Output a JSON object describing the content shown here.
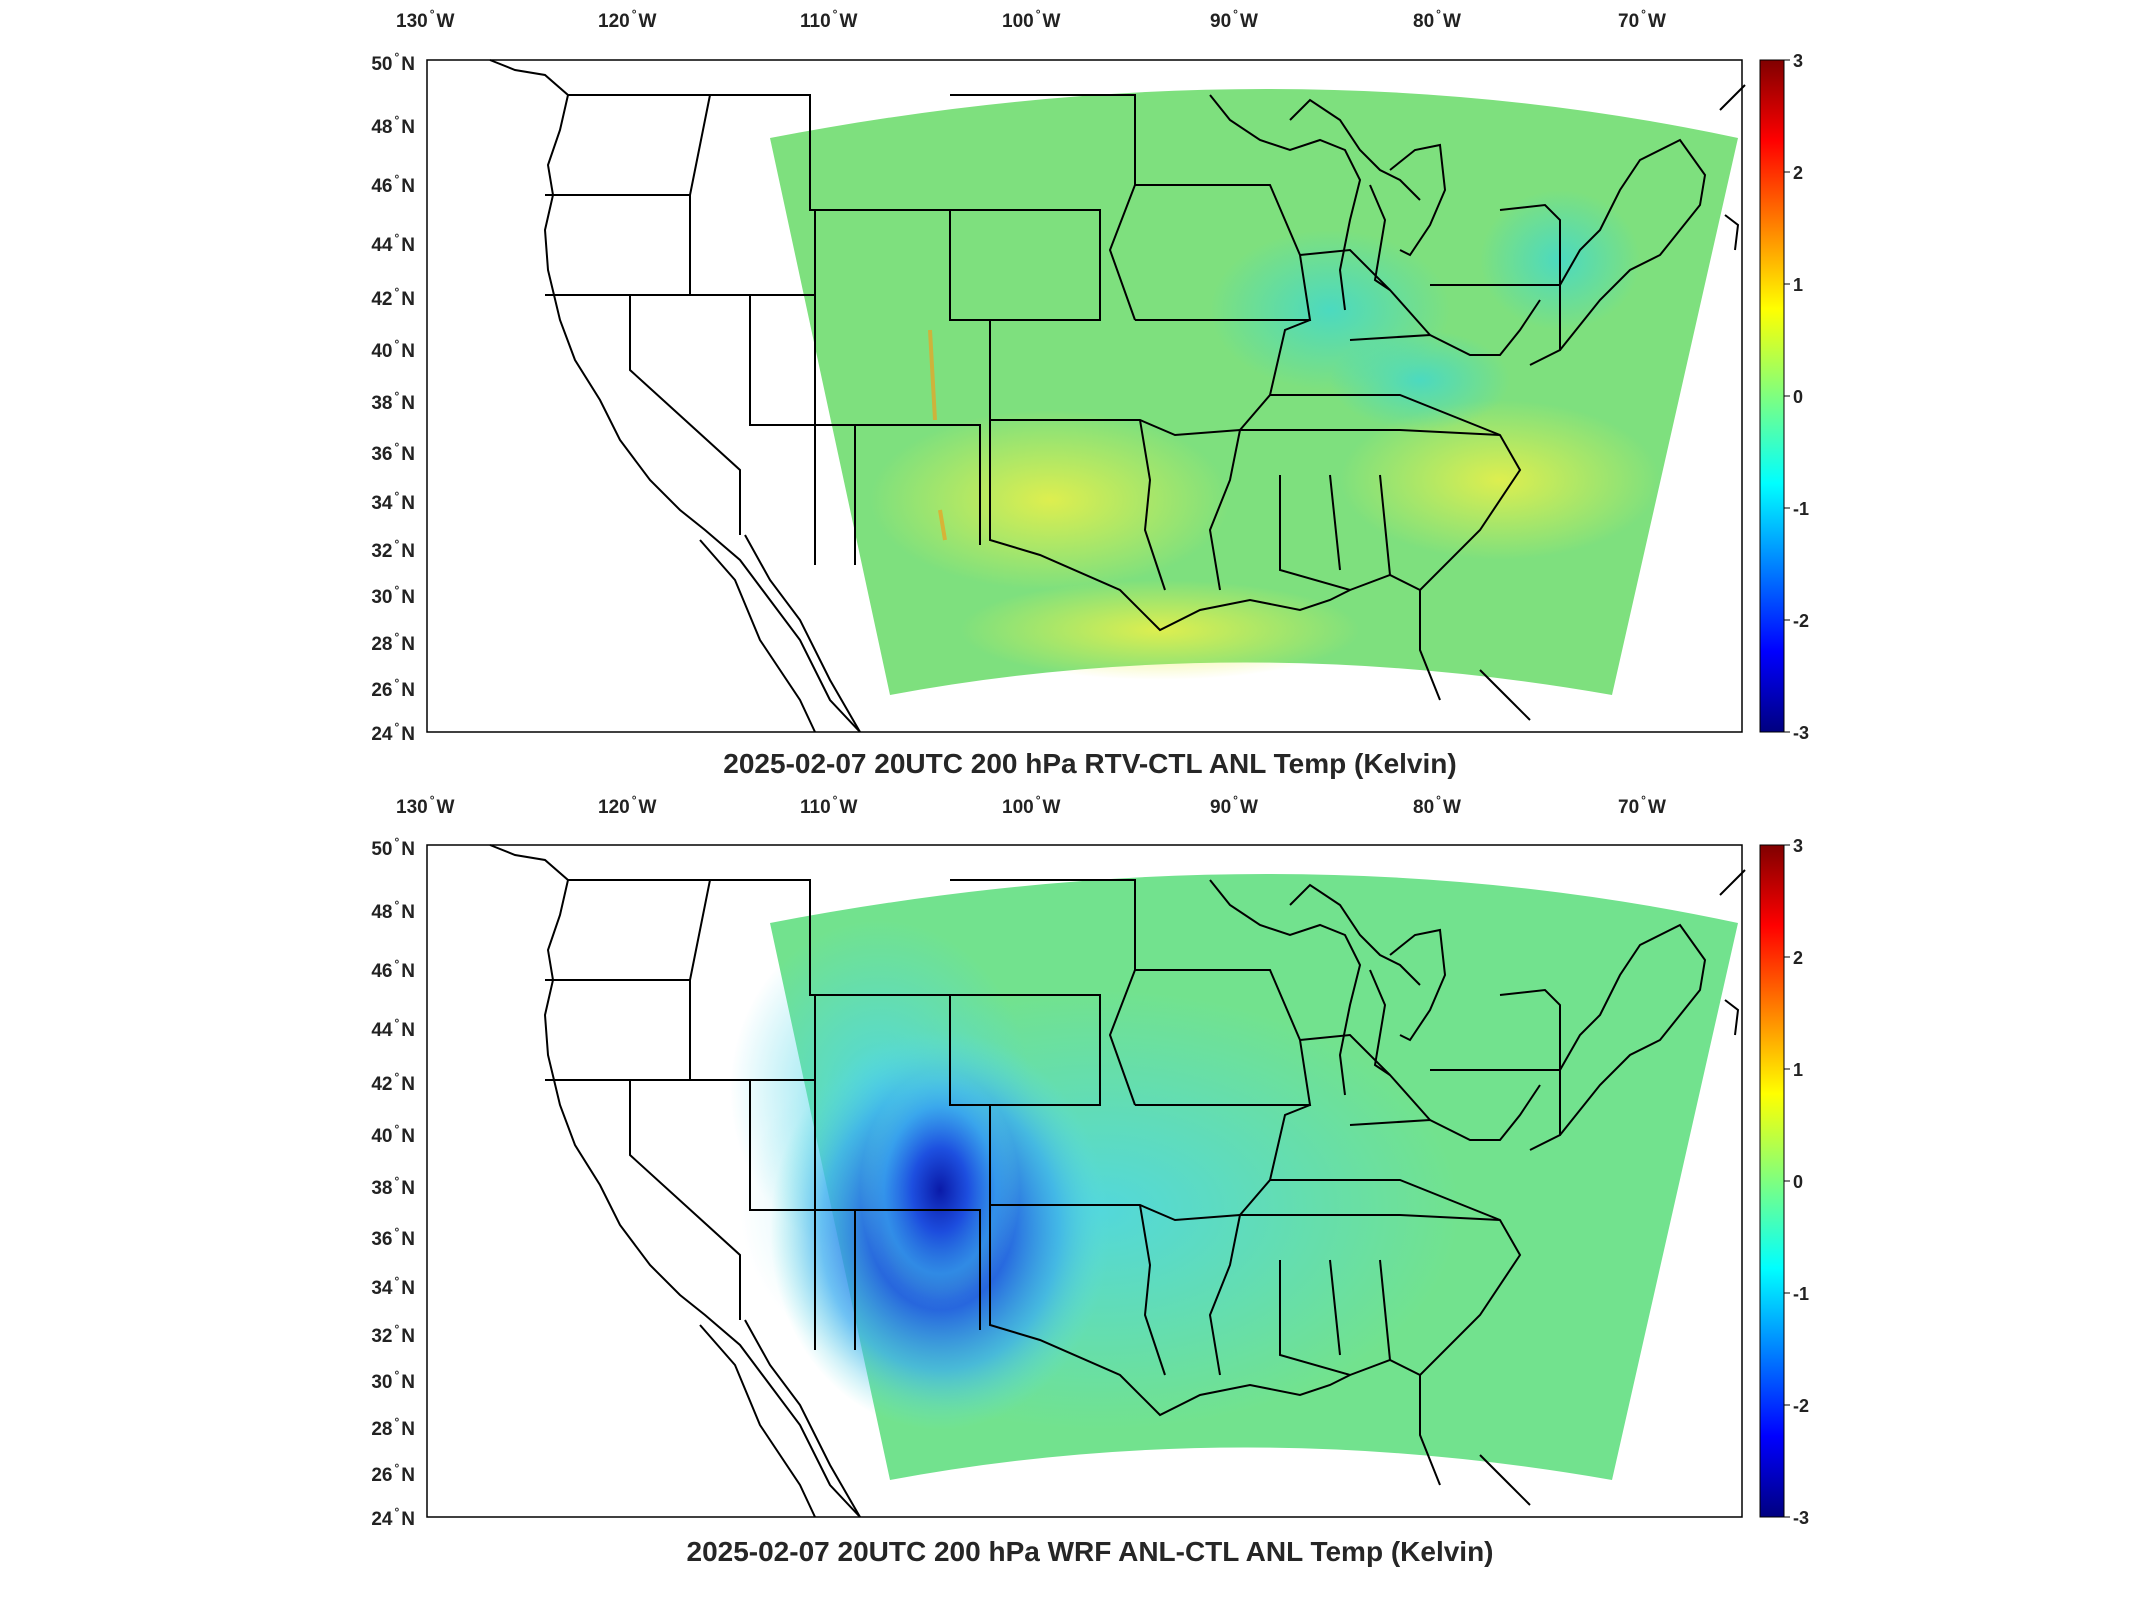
{
  "common": {
    "lon_labels": [
      "130",
      "120",
      "110",
      "100",
      "90",
      "80",
      "70"
    ],
    "lon_hemisphere": "W",
    "lat_labels": [
      "50",
      "48",
      "46",
      "44",
      "42",
      "40",
      "38",
      "36",
      "34",
      "32",
      "30",
      "28",
      "26",
      "24"
    ],
    "lat_hemisphere": "N",
    "colorbar": {
      "ticks": [
        "3",
        "2",
        "1",
        "0",
        "-1",
        "-2",
        "-3"
      ],
      "colormap": "jet",
      "range": [
        -3,
        3
      ]
    },
    "colors": {
      "field_base": "#6fe38a",
      "border_lines": "#000000"
    }
  },
  "panels": [
    {
      "title": "2025-02-07 20UTC 200 hPa RTV-CTL ANL Temp (Kelvin)",
      "dominant_value_range": [
        -0.5,
        0.8
      ],
      "feature": "small positive/negative noise over domain, warm streaks near CO/NM"
    },
    {
      "title": "2025-02-07 20UTC 200 hPa WRF ANL-CTL ANL Temp (Kelvin)",
      "dominant_value_range": [
        -2.8,
        0.5
      ],
      "feature": "strong cold anomaly centered over Colorado/New Mexico"
    }
  ]
}
